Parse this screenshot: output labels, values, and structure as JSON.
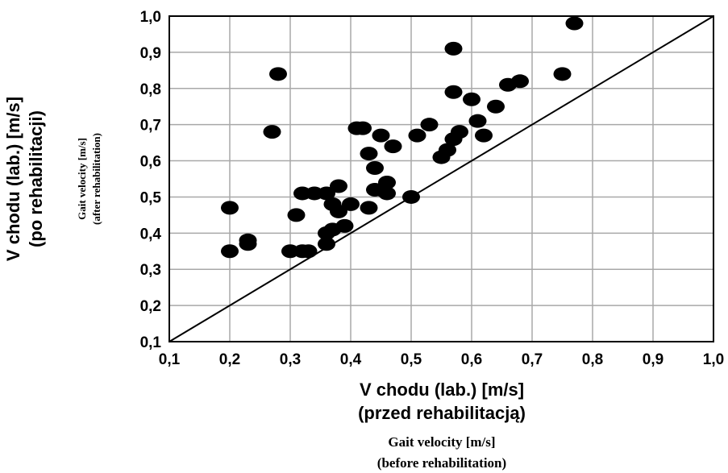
{
  "chart_data": {
    "type": "scatter",
    "title": "",
    "xlabel": "V chodu (lab.) [m/s]",
    "xlabel_sub": "(przed rehabilitacją)",
    "xlabel_en": "Gait velocity [m/s]",
    "xlabel_en_sub": "(before rehabilitation)",
    "ylabel": "V chodu (lab.) [m/s]",
    "ylabel_sub": "(po rehabilitacji)",
    "ylabel_en": "Gait velocity [m/s]",
    "ylabel_en_sub": "(after rehabilitation)",
    "xlim": [
      0.1,
      1.0
    ],
    "ylim": [
      0.1,
      1.0
    ],
    "x_ticks": [
      "0,1",
      "0,2",
      "0,3",
      "0,4",
      "0,5",
      "0,6",
      "0,7",
      "0,8",
      "0,9",
      "1,0"
    ],
    "y_ticks": [
      "0,1",
      "0,2",
      "0,3",
      "0,4",
      "0,5",
      "0,6",
      "0,7",
      "0,8",
      "0,9",
      "1,0"
    ],
    "grid": true,
    "reference_line": {
      "type": "identity",
      "from": [
        0.1,
        0.1
      ],
      "to": [
        1.0,
        1.0
      ]
    },
    "series": [
      {
        "color": "#000000",
        "points": [
          [
            0.2,
            0.47
          ],
          [
            0.2,
            0.35
          ],
          [
            0.23,
            0.37
          ],
          [
            0.23,
            0.38
          ],
          [
            0.27,
            0.68
          ],
          [
            0.28,
            0.84
          ],
          [
            0.3,
            0.35
          ],
          [
            0.31,
            0.45
          ],
          [
            0.32,
            0.35
          ],
          [
            0.33,
            0.35
          ],
          [
            0.32,
            0.51
          ],
          [
            0.34,
            0.51
          ],
          [
            0.36,
            0.51
          ],
          [
            0.36,
            0.37
          ],
          [
            0.36,
            0.4
          ],
          [
            0.37,
            0.41
          ],
          [
            0.37,
            0.48
          ],
          [
            0.38,
            0.46
          ],
          [
            0.38,
            0.53
          ],
          [
            0.39,
            0.42
          ],
          [
            0.4,
            0.48
          ],
          [
            0.41,
            0.69
          ],
          [
            0.42,
            0.69
          ],
          [
            0.43,
            0.47
          ],
          [
            0.43,
            0.62
          ],
          [
            0.44,
            0.58
          ],
          [
            0.44,
            0.52
          ],
          [
            0.45,
            0.52
          ],
          [
            0.45,
            0.67
          ],
          [
            0.46,
            0.54
          ],
          [
            0.46,
            0.51
          ],
          [
            0.47,
            0.64
          ],
          [
            0.5,
            0.5
          ],
          [
            0.51,
            0.67
          ],
          [
            0.53,
            0.7
          ],
          [
            0.55,
            0.61
          ],
          [
            0.56,
            0.63
          ],
          [
            0.57,
            0.91
          ],
          [
            0.57,
            0.79
          ],
          [
            0.57,
            0.66
          ],
          [
            0.58,
            0.68
          ],
          [
            0.6,
            0.77
          ],
          [
            0.61,
            0.71
          ],
          [
            0.62,
            0.67
          ],
          [
            0.64,
            0.75
          ],
          [
            0.66,
            0.81
          ],
          [
            0.68,
            0.82
          ],
          [
            0.75,
            0.84
          ],
          [
            0.77,
            0.98
          ]
        ]
      }
    ]
  }
}
